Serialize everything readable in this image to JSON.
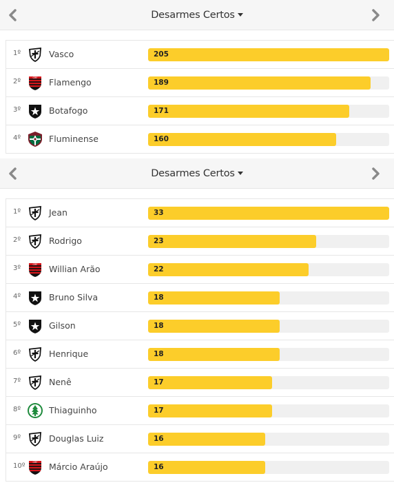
{
  "teams_panel": {
    "title": "Desarmes Certos",
    "max": 205,
    "rows": [
      {
        "pos": "1º",
        "name": "Vasco",
        "value": 205,
        "crest": "vasco"
      },
      {
        "pos": "2º",
        "name": "Flamengo",
        "value": 189,
        "crest": "flamengo"
      },
      {
        "pos": "3º",
        "name": "Botafogo",
        "value": 171,
        "crest": "botafogo"
      },
      {
        "pos": "4º",
        "name": "Fluminense",
        "value": 160,
        "crest": "fluminense"
      }
    ]
  },
  "players_panel": {
    "title": "Desarmes Certos",
    "max": 33,
    "rows": [
      {
        "pos": "1º",
        "name": "Jean",
        "value": 33,
        "crest": "vasco"
      },
      {
        "pos": "2º",
        "name": "Rodrigo",
        "value": 23,
        "crest": "vasco"
      },
      {
        "pos": "3º",
        "name": "Willian Arão",
        "value": 22,
        "crest": "flamengo"
      },
      {
        "pos": "4º",
        "name": "Bruno Silva",
        "value": 18,
        "crest": "botafogo"
      },
      {
        "pos": "5º",
        "name": "Gilson",
        "value": 18,
        "crest": "botafogo"
      },
      {
        "pos": "6º",
        "name": "Henrique",
        "value": 18,
        "crest": "vasco"
      },
      {
        "pos": "7º",
        "name": "Nenê",
        "value": 17,
        "crest": "vasco"
      },
      {
        "pos": "8º",
        "name": "Thiaguinho",
        "value": 17,
        "crest": "boavista"
      },
      {
        "pos": "9º",
        "name": "Douglas Luiz",
        "value": 16,
        "crest": "vasco"
      },
      {
        "pos": "10º",
        "name": "Márcio Araújo",
        "value": 16,
        "crest": "flamengo"
      }
    ]
  },
  "icons": {
    "prev": "chevron-left-icon",
    "next": "chevron-right-icon",
    "dropdown": "caret-down-icon"
  },
  "colors": {
    "bar": "#fccd2a",
    "track": "#f0f0f0",
    "header_bg": "#f6f6f6"
  }
}
